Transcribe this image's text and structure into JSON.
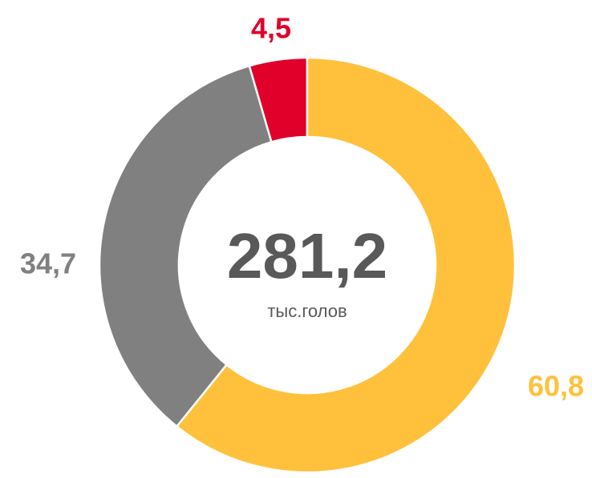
{
  "chart_data": {
    "type": "pie",
    "categories": [
      null,
      null,
      null
    ],
    "values": [
      60.8,
      34.7,
      4.5
    ],
    "value_labels": [
      "60,8",
      "34,7",
      "4,5"
    ],
    "colors": [
      "#ffc13b",
      "#808080",
      "#e0002a"
    ],
    "center_value": "281,2",
    "center_unit": "тыс.голов"
  }
}
